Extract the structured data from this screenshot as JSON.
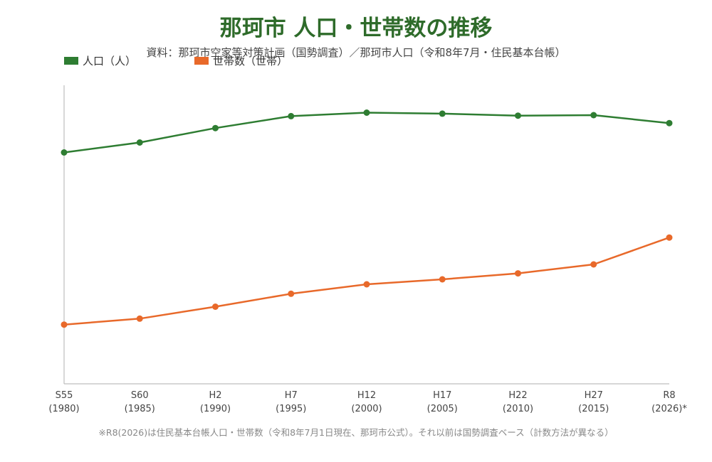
{
  "chart_data": {
    "type": "line",
    "title": "那珂市 人口・世帯数の推移",
    "subtitle": "資料：那珂市空家等対策計画（国勢調査）／那珂市人口（令和8年7月・住民基本台帳）",
    "categories": [
      {
        "era": "S55",
        "year": "(1980)"
      },
      {
        "era": "S60",
        "year": "(1985)"
      },
      {
        "era": "H2",
        "year": "(1990)"
      },
      {
        "era": "H7",
        "year": "(1995)"
      },
      {
        "era": "H12",
        "year": "(2000)"
      },
      {
        "era": "H17",
        "year": "(2005)"
      },
      {
        "era": "H22",
        "year": "(2010)"
      },
      {
        "era": "H27",
        "year": "(2015)"
      },
      {
        "era": "R8",
        "year": "(2026)*"
      }
    ],
    "series": [
      {
        "name": "人口（人）",
        "color": "#2e7d32",
        "values": [
          46500,
          48500,
          51400,
          53800,
          54500,
          54300,
          53900,
          54000,
          52400
        ]
      },
      {
        "name": "世帯数（世帯）",
        "color": "#e8692a",
        "values": [
          11900,
          13100,
          15500,
          18100,
          20000,
          21000,
          22200,
          24000,
          29400
        ]
      }
    ],
    "ylim": [
      0,
      60000
    ],
    "grid": false,
    "legend_position": "top-left",
    "footnote": "※R8(2026)は住民基本台帳人口・世帯数（令和8年7月1日現在、那珂市公式）。それ以前は国勢調査ベース（計数方法が異なる）"
  }
}
